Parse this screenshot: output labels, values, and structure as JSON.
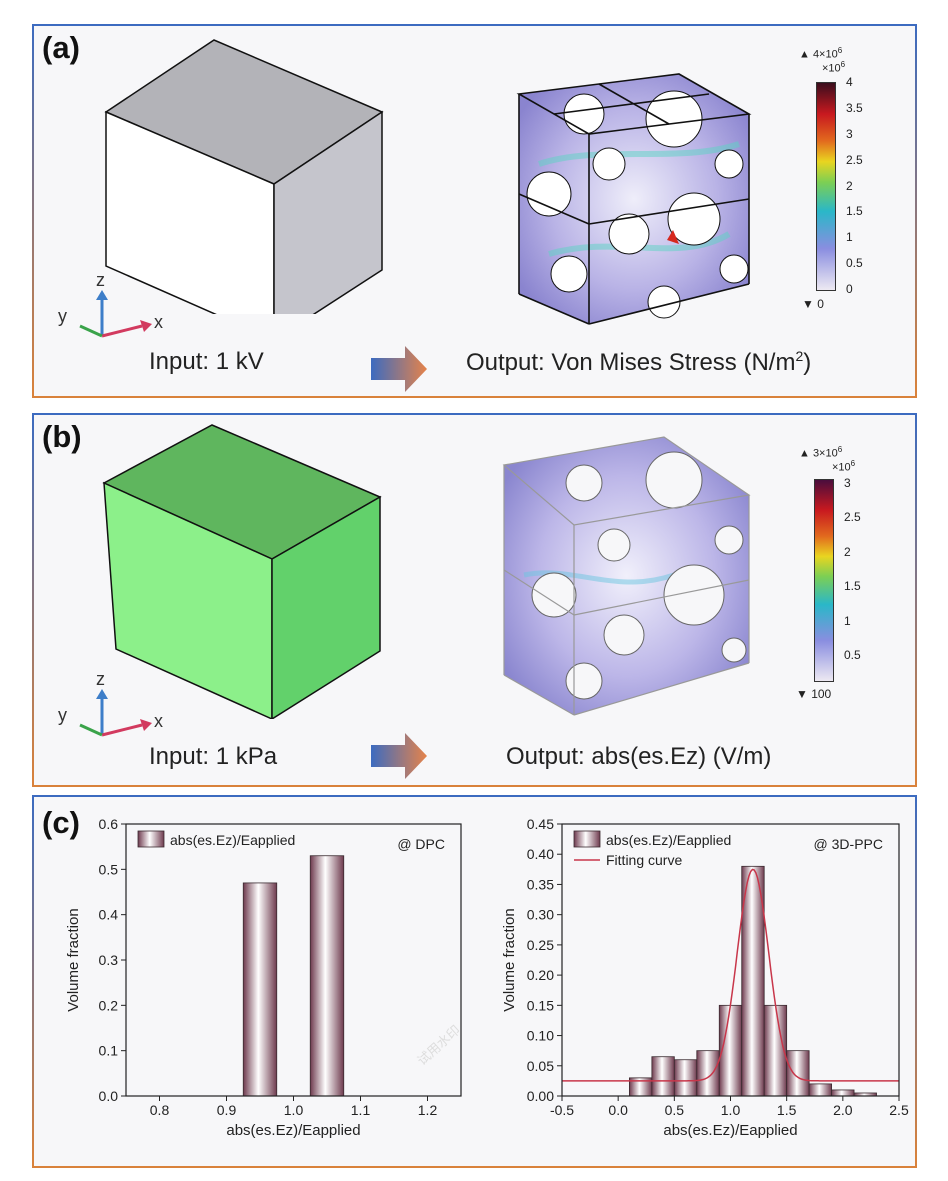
{
  "panels": {
    "a": {
      "tag": "(a)",
      "input_caption": "Input: 1 kV",
      "output_caption": "Output: Von Mises Stress (N/m",
      "output_caption_sup": "2",
      "output_caption_end": ")",
      "colorbar": {
        "max_label": "▲ 4×10",
        "max_exp": "6",
        "scale_label": "×10",
        "scale_exp": "6",
        "ticks": [
          "4",
          "3.5",
          "3",
          "2.5",
          "2",
          "1.5",
          "1",
          "0.5",
          "0"
        ],
        "min_label": "▼ 0"
      }
    },
    "b": {
      "tag": "(b)",
      "input_caption": "Input: 1 kPa",
      "output_caption": "Output: abs(es.Ez) (V/m)",
      "colorbar": {
        "max_label": "▲ 3×10",
        "max_exp": "6",
        "scale_label": "×10",
        "scale_exp": "6",
        "ticks": [
          "3",
          "2.5",
          "2",
          "1.5",
          "1",
          "0.5"
        ],
        "min_label": "▼ 100"
      }
    },
    "c": {
      "tag": "(c)"
    }
  },
  "axes_triad": {
    "z": "z",
    "y": "y",
    "x": "x"
  },
  "watermark": "试用水印",
  "colors": {
    "cube_grey_top": "#b3b3b8",
    "cube_green_front": "#62d16b",
    "accent_blue": "#3c6bc0",
    "accent_orange": "#d9823b",
    "fit_red": "#c8364a"
  },
  "chart_data": [
    {
      "type": "bar",
      "title": "@ DPC",
      "legend": [
        "abs(es.Ez)/Eapplied"
      ],
      "xlabel": "abs(es.Ez)/Eapplied",
      "ylabel": "Volume fraction",
      "x_ticks": [
        "0.8",
        "0.9",
        "1.0",
        "1.1",
        "1.2"
      ],
      "y_ticks": [
        "0.0",
        "0.1",
        "0.2",
        "0.3",
        "0.4",
        "0.5",
        "0.6"
      ],
      "xlim": [
        0.75,
        1.25
      ],
      "ylim": [
        0,
        0.6
      ],
      "bar_width": 0.05,
      "x": [
        0.95,
        1.05
      ],
      "values": [
        0.47,
        0.53
      ]
    },
    {
      "type": "bar",
      "title": "@ 3D-PPC",
      "legend": [
        "abs(es.Ez)/Eapplied",
        "Fitting curve"
      ],
      "xlabel": "abs(es.Ez)/Eapplied",
      "ylabel": "Volume fraction",
      "x_ticks": [
        "-0.5",
        "0.0",
        "0.5",
        "1.0",
        "1.5",
        "2.0",
        "2.5"
      ],
      "y_ticks": [
        "0.00",
        "0.05",
        "0.10",
        "0.15",
        "0.20",
        "0.25",
        "0.30",
        "0.35",
        "0.40",
        "0.45"
      ],
      "xlim": [
        -0.5,
        2.5
      ],
      "ylim": [
        0,
        0.45
      ],
      "bar_width": 0.2,
      "x": [
        0.2,
        0.4,
        0.6,
        0.8,
        1.0,
        1.2,
        1.4,
        1.6,
        1.8,
        2.0,
        2.2
      ],
      "values": [
        0.03,
        0.065,
        0.06,
        0.075,
        0.15,
        0.38,
        0.15,
        0.075,
        0.02,
        0.01,
        0.005
      ],
      "fit": {
        "baseline": 0.025,
        "amplitude": 0.35,
        "center": 1.2,
        "sigma": 0.14
      }
    }
  ]
}
